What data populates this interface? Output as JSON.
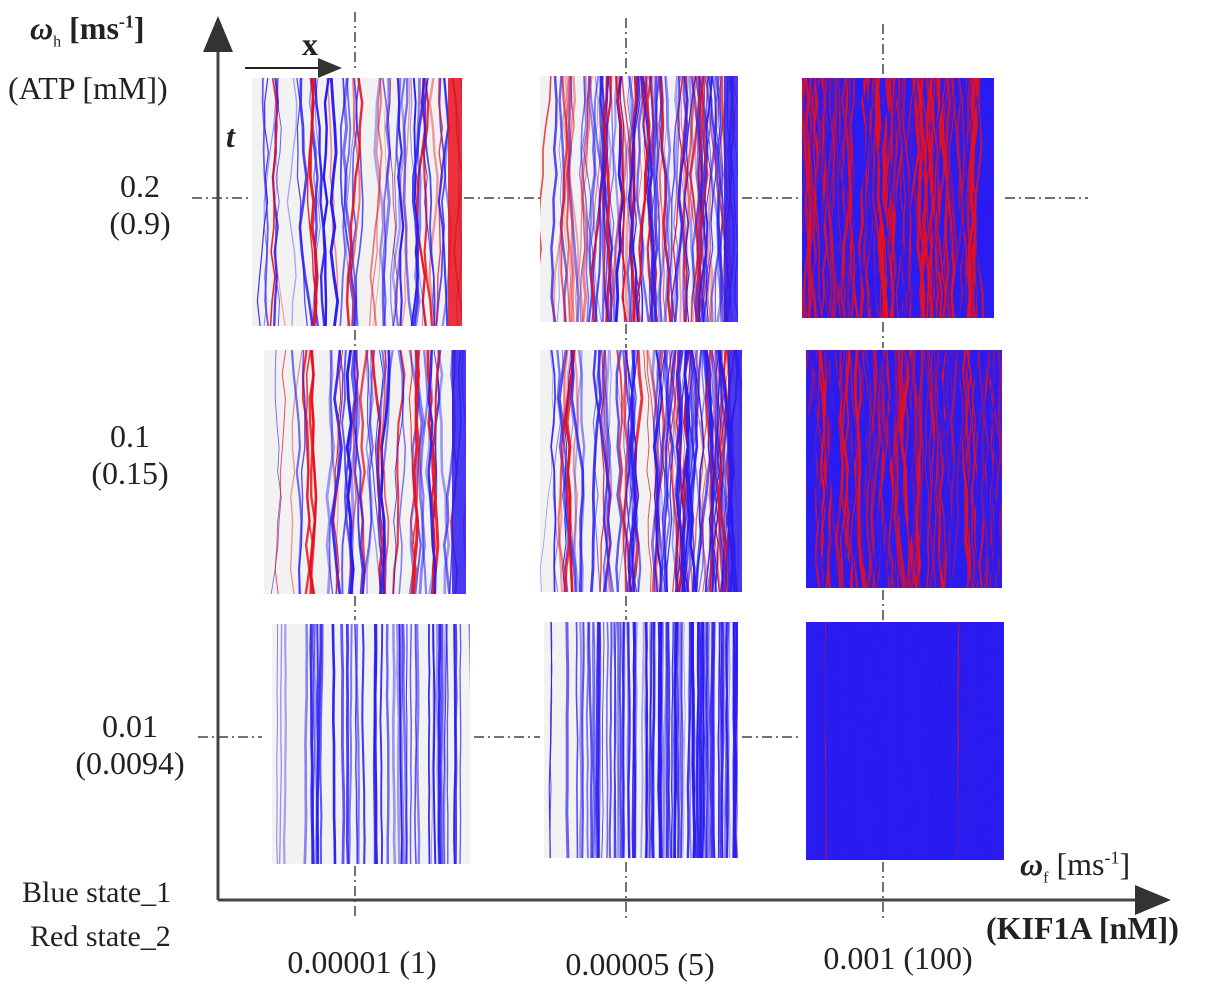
{
  "y_axis": {
    "symbol": "ω",
    "subscript": "h",
    "unit": "[ms",
    "unit_exp": "-1",
    "unit_close": "]",
    "secondary": "(ATP [mM])"
  },
  "x_axis": {
    "symbol": "ω",
    "subscript": "f",
    "unit": "[ms",
    "unit_exp": "-1",
    "unit_close": "]",
    "secondary": "(KIF1A [nM])"
  },
  "space_arrow_label": "x",
  "time_label": "t",
  "legend": {
    "blue": "Blue  state_1",
    "red": "Red  state_2"
  },
  "rows": [
    {
      "value": "0.2",
      "paren": "(0.9)"
    },
    {
      "value": "0.1",
      "paren": "(0.15)"
    },
    {
      "value": "0.01",
      "paren": "(0.0094)"
    }
  ],
  "columns": [
    {
      "label": "0.00001  (1)"
    },
    {
      "label": "0.00005 (5)"
    },
    {
      "label": "0.001 (100)"
    }
  ],
  "colors": {
    "state_1": "#2a1cf0",
    "state_2": "#e8101c",
    "empty": "#f2f2f2",
    "axis": "#333333"
  },
  "panels": [
    {
      "id": "r0c0",
      "density": 0.3,
      "red_fraction": 0.35
    },
    {
      "id": "r0c1",
      "density": 0.65,
      "red_fraction": 0.45
    },
    {
      "id": "r0c2",
      "density": 0.95,
      "red_fraction": 0.55
    },
    {
      "id": "r1c0",
      "density": 0.3,
      "red_fraction": 0.25
    },
    {
      "id": "r1c1",
      "density": 0.65,
      "red_fraction": 0.25
    },
    {
      "id": "r1c2",
      "density": 0.95,
      "red_fraction": 0.45
    },
    {
      "id": "r2c0",
      "density": 0.25,
      "red_fraction": 0.0
    },
    {
      "id": "r2c1",
      "density": 0.6,
      "red_fraction": 0.0
    },
    {
      "id": "r2c2",
      "density": 0.95,
      "red_fraction": 0.03
    }
  ]
}
